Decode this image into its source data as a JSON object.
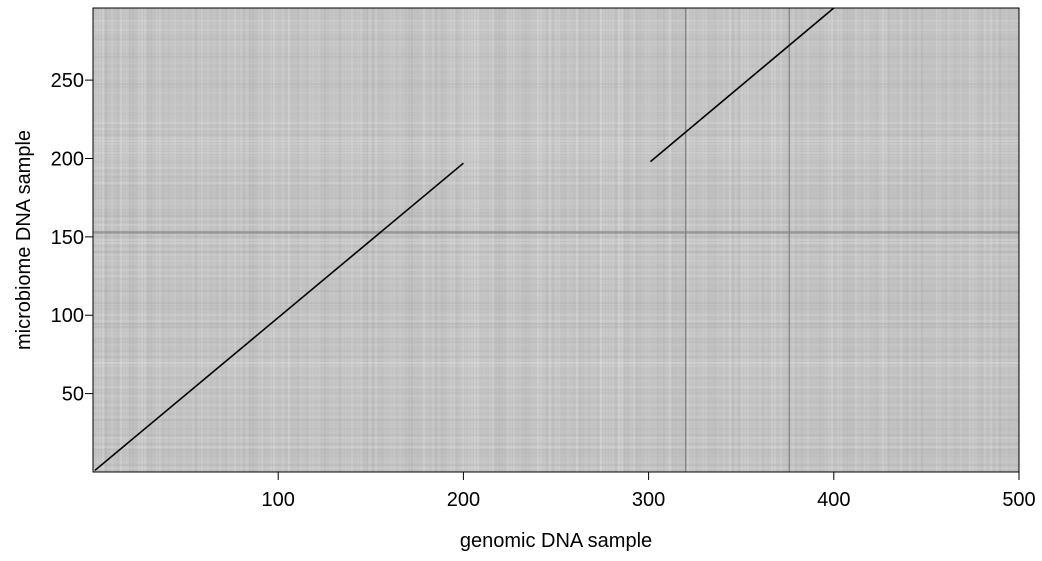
{
  "chart_data": {
    "type": "heatmap",
    "title": "",
    "xlabel": "genomic DNA sample",
    "ylabel": "microbiome DNA sample",
    "xlim": [
      0,
      500
    ],
    "ylim": [
      0,
      296
    ],
    "xticks": [
      100,
      200,
      300,
      400,
      500
    ],
    "yticks": [
      50,
      100,
      150,
      200,
      250
    ],
    "grid": false,
    "legend": "none",
    "colors": {
      "background": "#c2c2c2",
      "match": "#000000",
      "frame": "#000000"
    },
    "series": [
      {
        "x": [
          1,
          200
        ],
        "y": [
          1,
          197
        ]
      },
      {
        "x": [
          301,
          400
        ],
        "y": [
          198,
          296
        ]
      }
    ],
    "dark_columns": [
      320,
      376
    ],
    "dark_rows": [
      153
    ]
  }
}
